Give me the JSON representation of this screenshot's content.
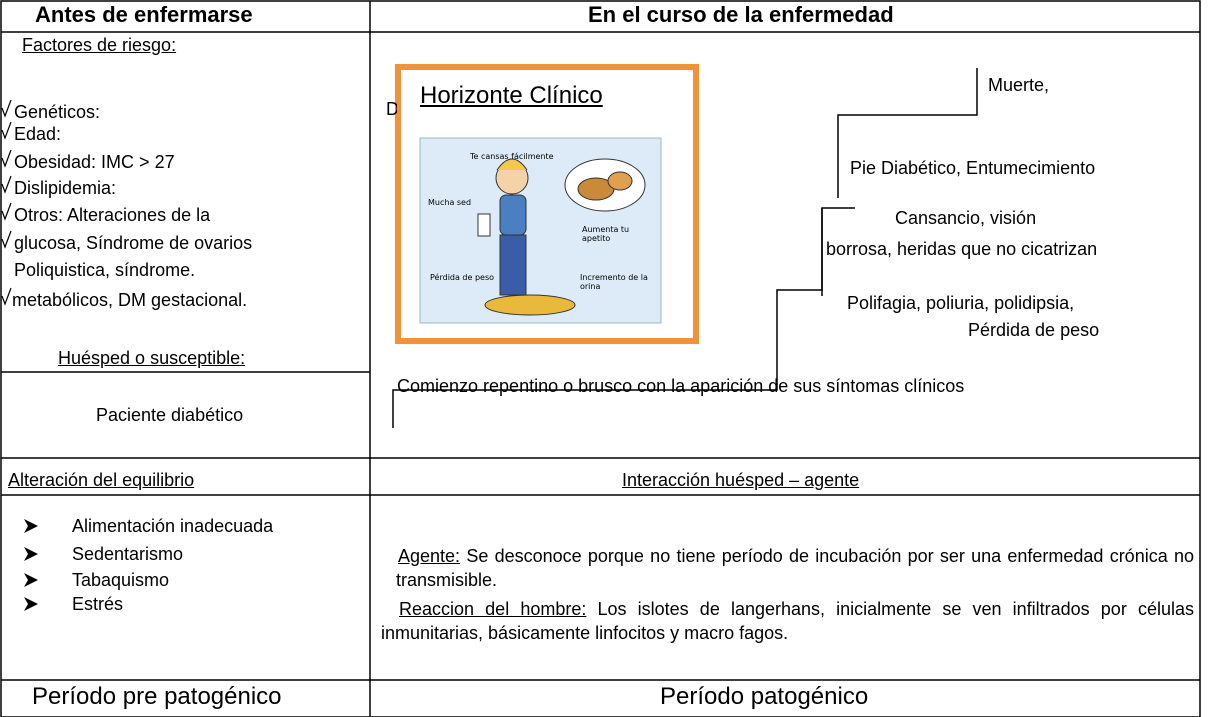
{
  "header": {
    "left": "Antes de enfermarse",
    "right": "En el curso de la enfermedad"
  },
  "risk_factors": {
    "title": "Factores de riesgo:",
    "items": [
      "Genéticos:",
      "Edad:",
      "Obesidad: IMC > 27",
      "Dislipidemia:",
      "Otros: Alteraciones de la",
      "glucosa, Síndrome de ovarios",
      "Poliquistica, síndrome.",
      "metabólicos, DM gestacional."
    ]
  },
  "host": {
    "title": "Huésped o susceptible:",
    "text": "Paciente diabético"
  },
  "clinical_horizon": {
    "title": "Horizonte Clínico",
    "hidden_text": "D",
    "illustration_labels": [
      "Te cansas fácilmente",
      "Mucha sed",
      "Aumenta tu apetito",
      "Pérdida de peso",
      "Incremento de la orina"
    ]
  },
  "stages": [
    "Muerte,",
    "Pie Diabético, Entumecimiento",
    "Cansancio, visión",
    "borrosa, heridas que no cicatrizan",
    "Polifagia, poliuria, polidipsia,",
    "Pérdida de peso"
  ],
  "onset": "Comienzo repentino o brusco con la aparición de sus síntomas clínicos",
  "row2": {
    "left": "Alteración del equilibrio",
    "right": "Interacción huésped – agente"
  },
  "imbalance_factors": [
    "Alimentación inadecuada",
    "Sedentarismo",
    "Tabaquismo",
    "Estrés"
  ],
  "agent": {
    "label": "Agente:",
    "text": "Se desconoce porque no tiene período de incubación por ser una enfermedad crónica no transmisible."
  },
  "man_reaction": {
    "label": "Reaccion del hombre:",
    "text": "Los islotes de langerhans, inicialmente se ven infiltrados por células inmunitarias, básicamente linfocitos y macro fagos."
  },
  "footer": {
    "left": "Período pre patogénico",
    "right": "Período patogénico"
  }
}
